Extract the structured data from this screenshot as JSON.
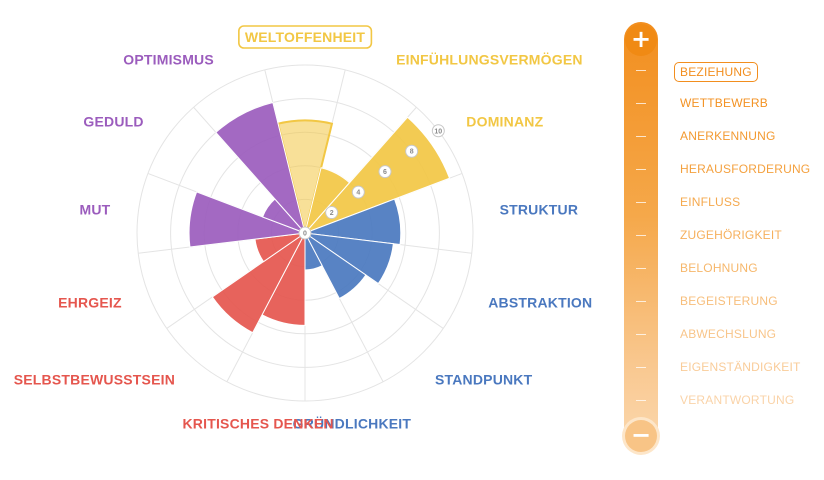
{
  "chart_data": {
    "type": "polar-bar",
    "scale_labels": [
      "2",
      "4",
      "6",
      "8",
      "10"
    ],
    "center_label": "0",
    "rmax": 10,
    "selected_category": "WELTOFFENHEIT",
    "categories": [
      {
        "label": "WELTOFFENHEIT",
        "value": 6.7,
        "color": "#f2c744",
        "group": "gelb"
      },
      {
        "label": "EINFÜHLUNGSVERMÖGEN",
        "value": 4.0,
        "color": "#f2c744",
        "group": "gelb"
      },
      {
        "label": "DOMINANZ",
        "value": 9.2,
        "color": "#f2c744",
        "group": "gelb"
      },
      {
        "label": "STRUKTUR",
        "value": 5.7,
        "color": "#4a78bf",
        "group": "blau"
      },
      {
        "label": "ABSTRAKTION",
        "value": 5.3,
        "color": "#4a78bf",
        "group": "blau"
      },
      {
        "label": "STANDPUNKT",
        "value": 4.4,
        "color": "#4a78bf",
        "group": "blau"
      },
      {
        "label": "GRÜNDLICHKEIT",
        "value": 2.2,
        "color": "#4a78bf",
        "group": "blau"
      },
      {
        "label": "KRITISCHES DENKEN",
        "value": 5.5,
        "color": "#e5564e",
        "group": "rot"
      },
      {
        "label": "SELBSTBEWUSSTSEIN",
        "value": 6.7,
        "color": "#e5564e",
        "group": "rot"
      },
      {
        "label": "EHRGEIZ",
        "value": 3.0,
        "color": "#e5564e",
        "group": "rot"
      },
      {
        "label": "MUT",
        "value": 6.9,
        "color": "#9b5cbd",
        "group": "lila"
      },
      {
        "label": "GEDULD",
        "value": 2.7,
        "color": "#9b5cbd",
        "group": "lila"
      },
      {
        "label": "OPTIMISMUS",
        "value": 8.0,
        "color": "#9b5cbd",
        "group": "lila"
      }
    ]
  },
  "slider": {
    "plus_label": "+",
    "minus_label": "−",
    "motives": [
      {
        "label": "BEZIEHUNG",
        "color": "#f28e1e",
        "selected": true
      },
      {
        "label": "WETTBEWERB",
        "color": "#f39223"
      },
      {
        "label": "ANERKENNUNG",
        "color": "#f39a31"
      },
      {
        "label": "HERAUSFORDERUNG",
        "color": "#f4a13f"
      },
      {
        "label": "EINFLUSS",
        "color": "#f5a94e"
      },
      {
        "label": "ZUGEHÖRIGKEIT",
        "color": "#f6b05d"
      },
      {
        "label": "BELOHNUNG",
        "color": "#f6b76b"
      },
      {
        "label": "BEGEISTERUNG",
        "color": "#f7be7b"
      },
      {
        "label": "ABWECHSLUNG",
        "color": "#f8c58a"
      },
      {
        "label": "EIGENSTÄNDIGKEIT",
        "color": "#f9cc99"
      },
      {
        "label": "VERANTWORTUNG",
        "color": "#fad3a8"
      }
    ]
  }
}
